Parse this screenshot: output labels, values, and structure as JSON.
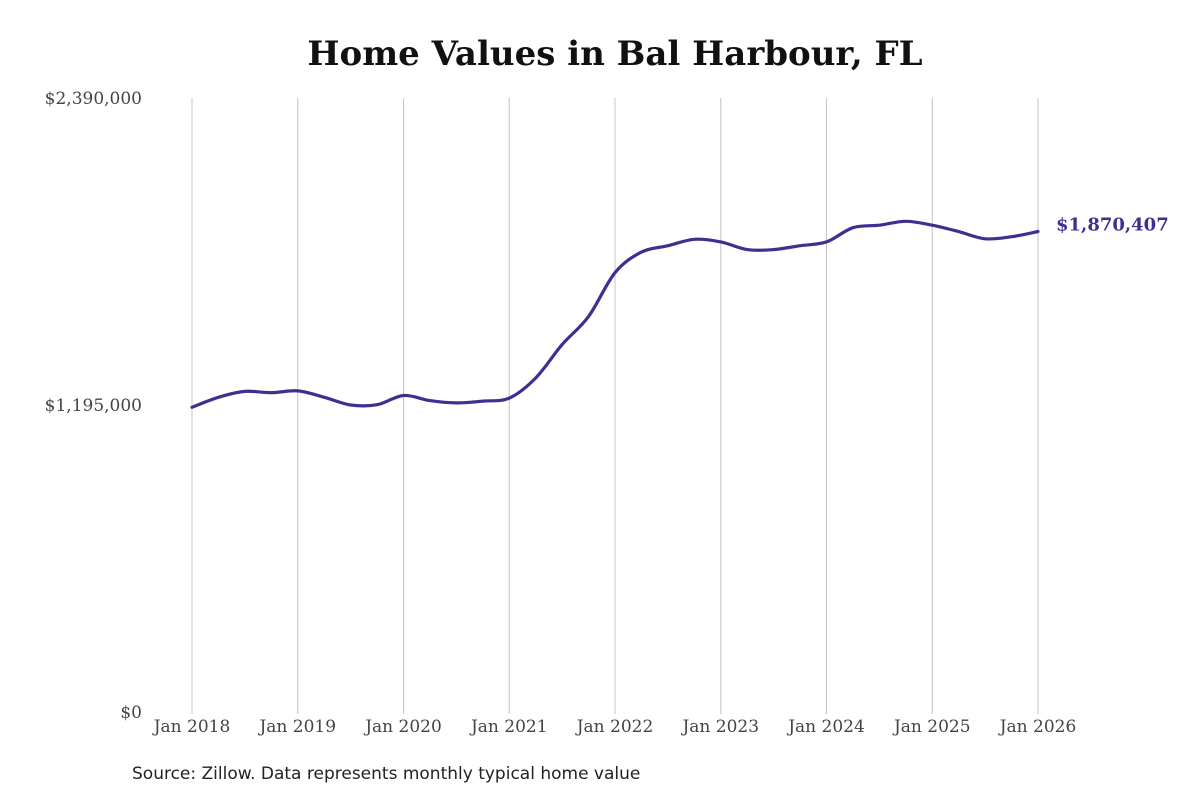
{
  "chart_data": {
    "type": "line",
    "title": "Home Values in Bal Harbour, FL",
    "source": "Source: Zillow. Data represents monthly typical home value",
    "xlabel": "",
    "ylabel": "",
    "x_tick_labels": [
      "Jan 2018",
      "Jan 2019",
      "Jan 2020",
      "Jan 2021",
      "Jan 2022",
      "Jan 2023",
      "Jan 2024",
      "Jan 2025",
      "Jan 2026"
    ],
    "x_range": [
      "2018-01",
      "2026-01"
    ],
    "y_tick_labels": [
      "$0",
      "$1,195,000",
      "$2,390,000"
    ],
    "y_ticks": [
      0,
      1195000,
      2390000
    ],
    "ylim": [
      0,
      2390000
    ],
    "grid": "vertical",
    "line_color": "#3b3190",
    "end_label": "$1,870,407",
    "series": [
      {
        "x": [
          "2018-01",
          "2018-04",
          "2018-07",
          "2018-10",
          "2019-01",
          "2019-04",
          "2019-07",
          "2019-10",
          "2020-01",
          "2020-04",
          "2020-07",
          "2020-10",
          "2021-01",
          "2021-04",
          "2021-07",
          "2021-10",
          "2022-01",
          "2022-04",
          "2022-07",
          "2022-10",
          "2023-01",
          "2023-04",
          "2023-07",
          "2023-10",
          "2024-01",
          "2024-04",
          "2024-07",
          "2024-10",
          "2025-01",
          "2025-04",
          "2025-07",
          "2025-10",
          "2026-01"
        ],
        "values": [
          1186000,
          1225000,
          1248000,
          1243000,
          1250000,
          1225000,
          1195000,
          1196000,
          1232000,
          1212000,
          1203000,
          1210000,
          1222000,
          1300000,
          1430000,
          1540000,
          1710000,
          1790000,
          1815000,
          1840000,
          1830000,
          1800000,
          1800000,
          1815000,
          1830000,
          1885000,
          1895000,
          1910000,
          1895000,
          1870000,
          1842000,
          1850000,
          1870407
        ]
      }
    ]
  }
}
